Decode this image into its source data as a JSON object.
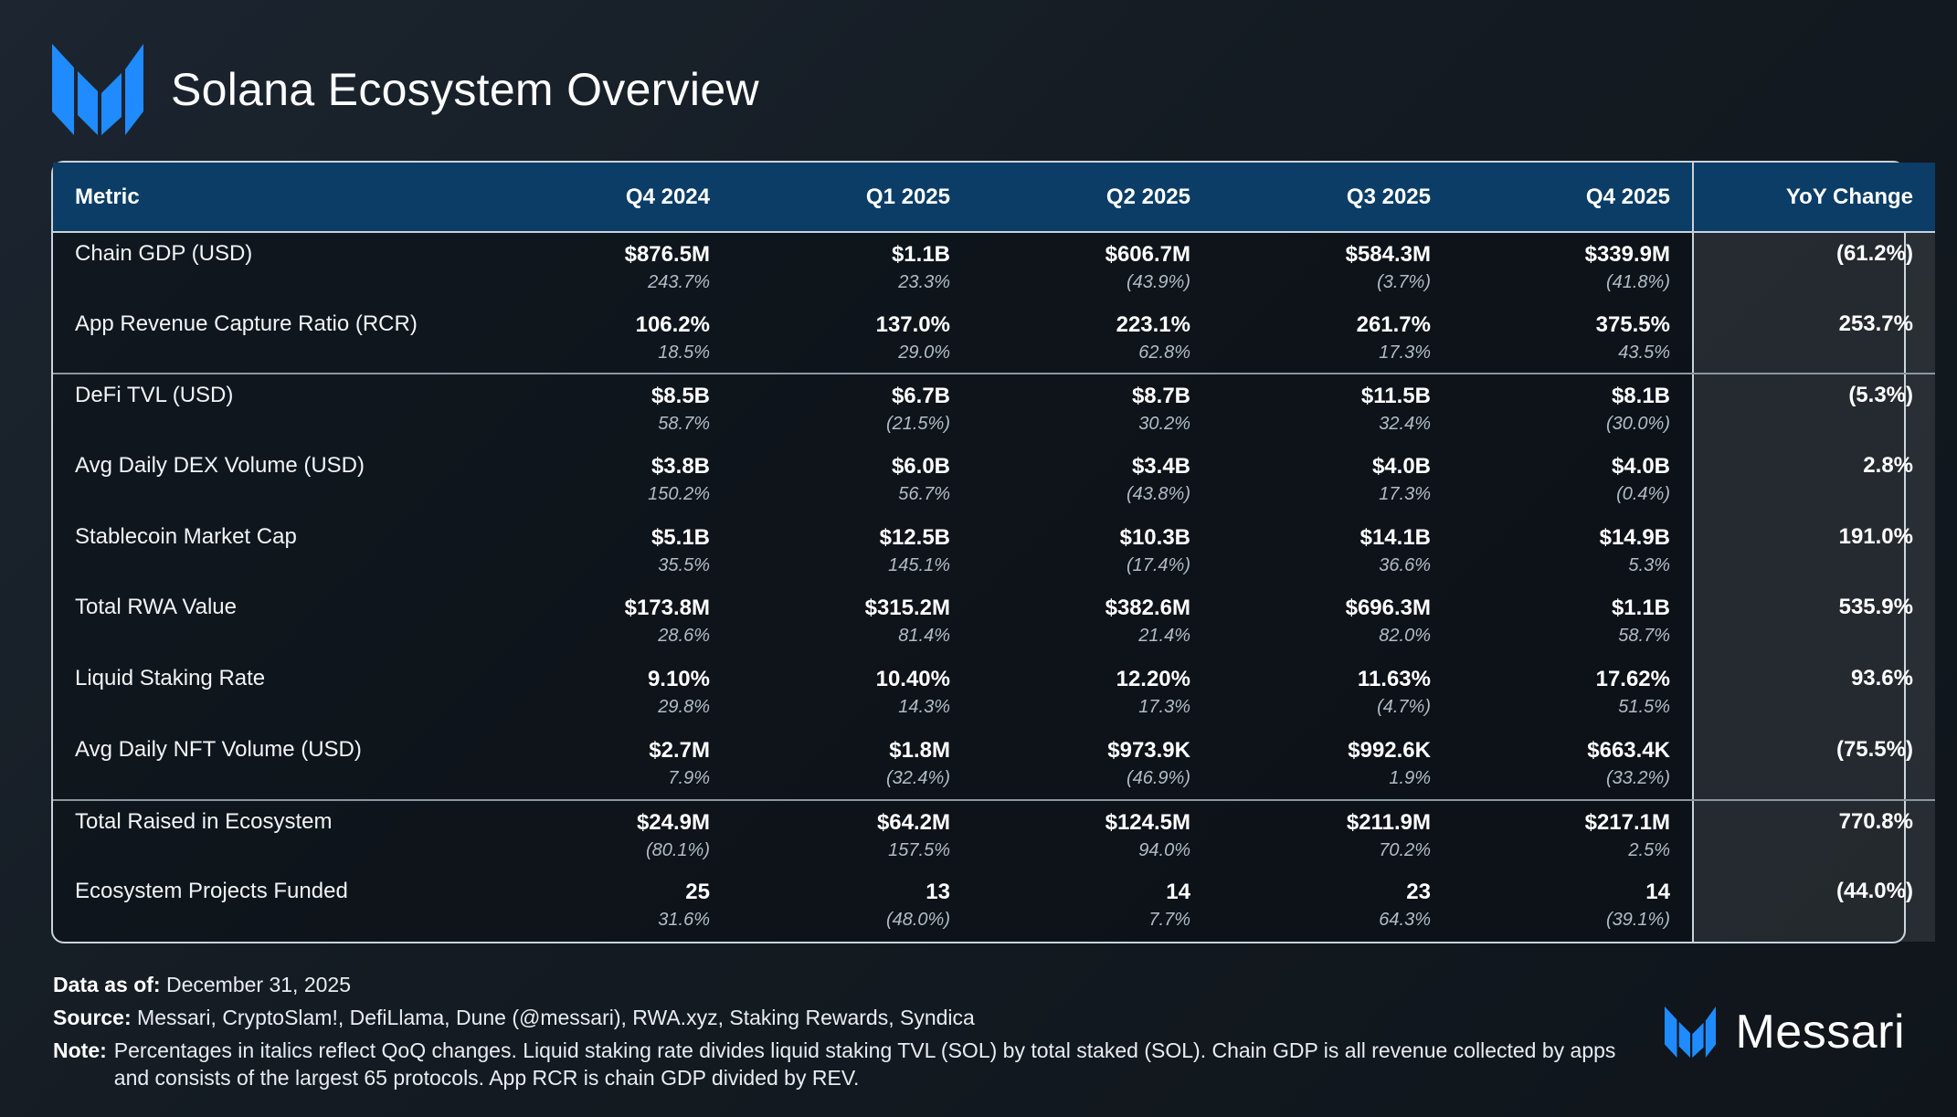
{
  "header": {
    "title": "Solana Ecosystem Overview",
    "logo_icon": "messari-logo-icon"
  },
  "colors": {
    "accent": "#1f8bff",
    "header_row": "#0b3d66",
    "background": "#151c23"
  },
  "table": {
    "columns": [
      "Metric",
      "Q4 2024",
      "Q1 2025",
      "Q2 2025",
      "Q3 2025",
      "Q4 2025",
      "YoY Change"
    ],
    "rows": [
      {
        "metric": "Chain GDP (USD)",
        "values": [
          "$876.5M",
          "$1.1B",
          "$606.7M",
          "$584.3M",
          "$339.9M"
        ],
        "changes": [
          "243.7%",
          "23.3%",
          "(43.9%)",
          "(3.7%)",
          "(41.8%)"
        ],
        "yoy": "(61.2%)"
      },
      {
        "metric": "App Revenue Capture Ratio (RCR)",
        "values": [
          "106.2%",
          "137.0%",
          "223.1%",
          "261.7%",
          "375.5%"
        ],
        "changes": [
          "18.5%",
          "29.0%",
          "62.8%",
          "17.3%",
          "43.5%"
        ],
        "yoy": "253.7%"
      },
      {
        "metric": "DeFi TVL (USD)",
        "values": [
          "$8.5B",
          "$6.7B",
          "$8.7B",
          "$11.5B",
          "$8.1B"
        ],
        "changes": [
          "58.7%",
          "(21.5%)",
          "30.2%",
          "32.4%",
          "(30.0%)"
        ],
        "yoy": "(5.3%)"
      },
      {
        "metric": "Avg Daily DEX Volume (USD)",
        "values": [
          "$3.8B",
          "$6.0B",
          "$3.4B",
          "$4.0B",
          "$4.0B"
        ],
        "changes": [
          "150.2%",
          "56.7%",
          "(43.8%)",
          "17.3%",
          "(0.4%)"
        ],
        "yoy": "2.8%"
      },
      {
        "metric": "Stablecoin Market Cap",
        "values": [
          "$5.1B",
          "$12.5B",
          "$10.3B",
          "$14.1B",
          "$14.9B"
        ],
        "changes": [
          "35.5%",
          "145.1%",
          "(17.4%)",
          "36.6%",
          "5.3%"
        ],
        "yoy": "191.0%"
      },
      {
        "metric": "Total RWA Value",
        "values": [
          "$173.8M",
          "$315.2M",
          "$382.6M",
          "$696.3M",
          "$1.1B"
        ],
        "changes": [
          "28.6%",
          "81.4%",
          "21.4%",
          "82.0%",
          "58.7%"
        ],
        "yoy": "535.9%"
      },
      {
        "metric": "Liquid Staking Rate",
        "values": [
          "9.10%",
          "10.40%",
          "12.20%",
          "11.63%",
          "17.62%"
        ],
        "changes": [
          "29.8%",
          "14.3%",
          "17.3%",
          "(4.7%)",
          "51.5%"
        ],
        "yoy": "93.6%"
      },
      {
        "metric": "Avg Daily NFT Volume (USD)",
        "values": [
          "$2.7M",
          "$1.8M",
          "$973.9K",
          "$992.6K",
          "$663.4K"
        ],
        "changes": [
          "7.9%",
          "(32.4%)",
          "(46.9%)",
          "1.9%",
          "(33.2%)"
        ],
        "yoy": "(75.5%)"
      },
      {
        "metric": "Total Raised in Ecosystem",
        "values": [
          "$24.9M",
          "$64.2M",
          "$124.5M",
          "$211.9M",
          "$217.1M"
        ],
        "changes": [
          "(80.1%)",
          "157.5%",
          "94.0%",
          "70.2%",
          "2.5%"
        ],
        "yoy": "770.8%"
      },
      {
        "metric": "Ecosystem Projects Funded",
        "values": [
          "25",
          "13",
          "14",
          "23",
          "14"
        ],
        "changes": [
          "31.6%",
          "(48.0%)",
          "7.7%",
          "64.3%",
          "(39.1%)"
        ],
        "yoy": "(44.0%)"
      }
    ]
  },
  "footer": {
    "data_as_of_label": "Data as of:",
    "data_as_of_value": "December 31, 2025",
    "source_label": "Source:",
    "source_value": "Messari, CryptoSlam!, DefiLlama, Dune (@messari), RWA.xyz, Staking Rewards, Syndica",
    "note_label": "Note:",
    "note_value": "Percentages in italics reflect QoQ changes. Liquid staking rate divides liquid staking TVL (SOL) by total staked (SOL). Chain GDP is all revenue collected by apps and consists of the largest 65 protocols. App RCR is chain GDP divided by REV."
  },
  "brand": {
    "name": "Messari",
    "logo_icon": "messari-logo-icon"
  }
}
